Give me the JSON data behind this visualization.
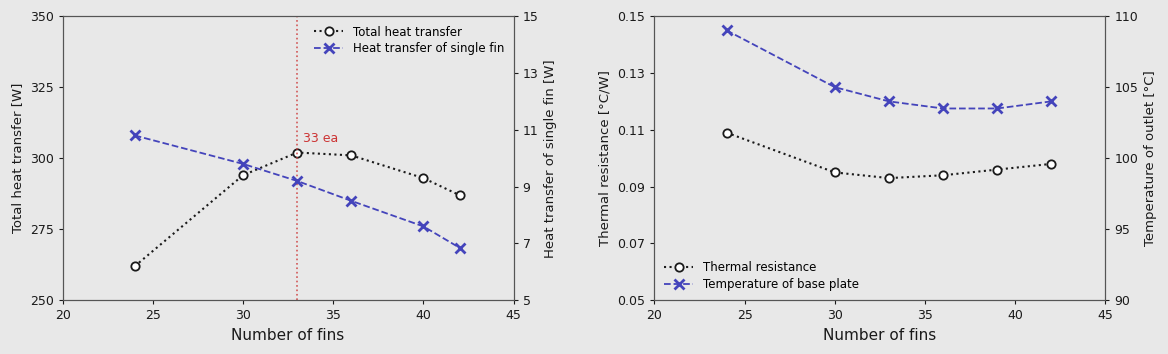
{
  "left": {
    "x": [
      24,
      30,
      33,
      36,
      40,
      42
    ],
    "total_heat": [
      262,
      294,
      302,
      301,
      293,
      287
    ],
    "single_fin_heat": [
      10.8,
      9.8,
      9.2,
      8.5,
      7.6,
      6.85
    ],
    "xlabel": "Number of fins",
    "ylabel_left": "Total heat transfer [W]",
    "ylabel_right": "Heat transfer of single fin [W]",
    "ylim_left": [
      250,
      350
    ],
    "ylim_right": [
      5,
      15
    ],
    "xlim": [
      20,
      45
    ],
    "yticks_left": [
      250,
      275,
      300,
      325,
      350
    ],
    "yticks_right": [
      5,
      7,
      9,
      11,
      13,
      15
    ],
    "xticks": [
      20,
      25,
      30,
      35,
      40,
      45
    ],
    "vline_x": 33,
    "vline_label": "33 ea",
    "legend_total": "Total heat transfer",
    "legend_single": "Heat transfer of single fin"
  },
  "right": {
    "x": [
      24,
      30,
      33,
      36,
      39,
      42
    ],
    "thermal_resistance": [
      0.109,
      0.095,
      0.093,
      0.094,
      0.096,
      0.098
    ],
    "temperature": [
      109.0,
      105.0,
      104.0,
      103.5,
      103.5,
      104.0
    ],
    "xlabel": "Number of fins",
    "ylabel_left": "Thermal resistance [°C/W]",
    "ylabel_right": "Temperature of outlet [°C]",
    "ylim_left": [
      0.05,
      0.15
    ],
    "ylim_right": [
      90,
      110
    ],
    "xlim": [
      20,
      45
    ],
    "yticks_left": [
      0.05,
      0.07,
      0.09,
      0.11,
      0.13,
      0.15
    ],
    "yticks_right": [
      90,
      95,
      100,
      105,
      110
    ],
    "xticks": [
      20,
      25,
      30,
      35,
      40,
      45
    ],
    "legend_thermal": "Thermal resistance",
    "legend_temp": "Temperature of base plate"
  },
  "black_color": "#1a1a1a",
  "blue_color": "#4444bb",
  "red_color": "#cc3333",
  "bg_color": "#e8e8e8",
  "spine_color": "#555555",
  "figure_width": 11.68,
  "figure_height": 3.54,
  "dpi": 100
}
